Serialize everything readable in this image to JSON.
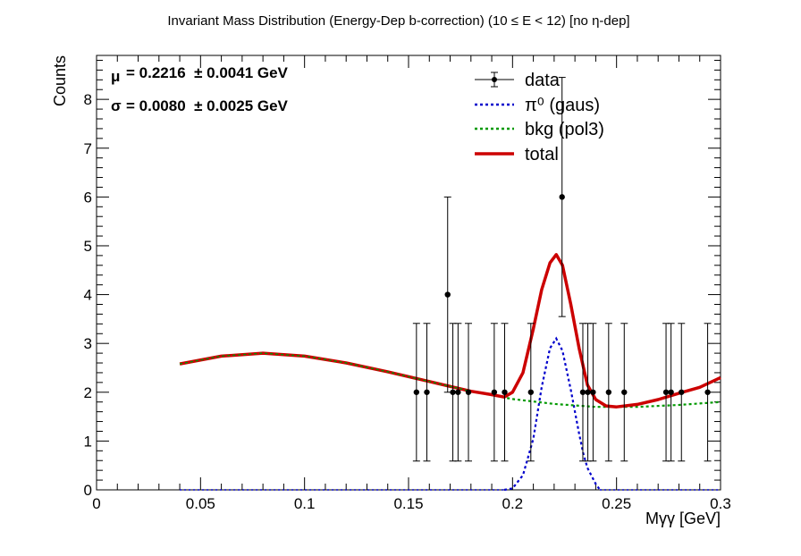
{
  "chart_data": {
    "type": "scatter",
    "title": "Invariant Mass Distribution (Energy-Dep b-correction)   (10      ≤ E < 12)   [no  η-dep]",
    "xlabel": "Mγγ  [GeV]",
    "ylabel": "Counts",
    "xlim": [
      0,
      0.3
    ],
    "ylim": [
      0,
      8.9
    ],
    "xticks": [
      {
        "v": 0,
        "label": "0"
      },
      {
        "v": 0.05,
        "label": "0.05"
      },
      {
        "v": 0.1,
        "label": "0.1"
      },
      {
        "v": 0.15,
        "label": "0.15"
      },
      {
        "v": 0.2,
        "label": "0.2"
      },
      {
        "v": 0.25,
        "label": "0.25"
      },
      {
        "v": 0.3,
        "label": "0.3"
      }
    ],
    "yticks": [
      {
        "v": 0,
        "label": "0"
      },
      {
        "v": 1,
        "label": "1"
      },
      {
        "v": 2,
        "label": "2"
      },
      {
        "v": 3,
        "label": "3"
      },
      {
        "v": 4,
        "label": "4"
      },
      {
        "v": 5,
        "label": "5"
      },
      {
        "v": 6,
        "label": "6"
      },
      {
        "v": 7,
        "label": "7"
      },
      {
        "v": 8,
        "label": "8"
      }
    ],
    "legend_position": "top-right",
    "fit_results": [
      {
        "symbol": "μ",
        "text": "= 0.2216  ± 0.0041 GeV"
      },
      {
        "symbol": "σ",
        "text": "= 0.0080  ± 0.0025 GeV"
      }
    ],
    "data_points": [
      {
        "x": 0.1538,
        "y": 2,
        "err": 1.41
      },
      {
        "x": 0.1588,
        "y": 2,
        "err": 1.41
      },
      {
        "x": 0.1688,
        "y": 4,
        "err": 2.0
      },
      {
        "x": 0.1713,
        "y": 2,
        "err": 1.41
      },
      {
        "x": 0.1738,
        "y": 2,
        "err": 1.41
      },
      {
        "x": 0.1788,
        "y": 2,
        "err": 1.41
      },
      {
        "x": 0.1912,
        "y": 2,
        "err": 1.41
      },
      {
        "x": 0.1962,
        "y": 2,
        "err": 1.41
      },
      {
        "x": 0.2088,
        "y": 2,
        "err": 1.41
      },
      {
        "x": 0.2238,
        "y": 6,
        "err": 2.45
      },
      {
        "x": 0.2338,
        "y": 2,
        "err": 1.41
      },
      {
        "x": 0.2362,
        "y": 2,
        "err": 1.41
      },
      {
        "x": 0.2387,
        "y": 2,
        "err": 1.41
      },
      {
        "x": 0.2462,
        "y": 2,
        "err": 1.41
      },
      {
        "x": 0.2537,
        "y": 2,
        "err": 1.41
      },
      {
        "x": 0.2738,
        "y": 2,
        "err": 1.41
      },
      {
        "x": 0.2762,
        "y": 2,
        "err": 1.41
      },
      {
        "x": 0.2812,
        "y": 2,
        "err": 1.41
      },
      {
        "x": 0.2938,
        "y": 2,
        "err": 1.41
      }
    ],
    "series": [
      {
        "name": "data",
        "kind": "points",
        "color": "#000000"
      },
      {
        "name": "π⁰ (gaus)",
        "kind": "dashed",
        "color": "#0000cc",
        "x": [
          0.196,
          0.2,
          0.205,
          0.21,
          0.214,
          0.218,
          0.221,
          0.224,
          0.228,
          0.232,
          0.234,
          0.236,
          0.24,
          0.242
        ],
        "y": [
          0.0,
          0.03,
          0.3,
          1.05,
          2.1,
          2.9,
          3.1,
          2.85,
          2.05,
          1.15,
          0.75,
          0.45,
          0.12,
          0.0
        ]
      },
      {
        "name": "bkg (pol3)",
        "kind": "dashed",
        "color": "#009900",
        "x": [
          0.04,
          0.06,
          0.08,
          0.1,
          0.12,
          0.14,
          0.16,
          0.18,
          0.2,
          0.22,
          0.24,
          0.26,
          0.28,
          0.3
        ],
        "y": [
          2.58,
          2.74,
          2.8,
          2.74,
          2.6,
          2.42,
          2.22,
          2.02,
          1.86,
          1.76,
          1.7,
          1.7,
          1.74,
          1.8
        ]
      },
      {
        "name": "total",
        "kind": "solid",
        "color": "#cc0000",
        "x": [
          0.04,
          0.06,
          0.08,
          0.1,
          0.12,
          0.14,
          0.16,
          0.18,
          0.19,
          0.196,
          0.2,
          0.205,
          0.21,
          0.214,
          0.218,
          0.221,
          0.224,
          0.228,
          0.232,
          0.236,
          0.24,
          0.245,
          0.25,
          0.26,
          0.27,
          0.28,
          0.29,
          0.3
        ],
        "y": [
          2.58,
          2.74,
          2.8,
          2.74,
          2.6,
          2.42,
          2.22,
          2.02,
          1.95,
          1.9,
          2.0,
          2.4,
          3.3,
          4.1,
          4.65,
          4.82,
          4.6,
          3.8,
          2.9,
          2.15,
          1.85,
          1.72,
          1.7,
          1.75,
          1.85,
          1.98,
          2.1,
          2.3
        ]
      }
    ]
  }
}
